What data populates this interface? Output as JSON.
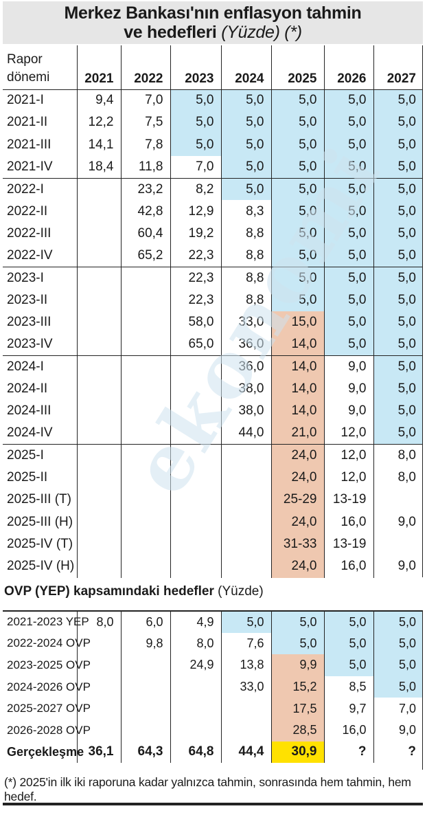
{
  "title": {
    "line1": "Merkez Bankası'nın enflasyon tahmin",
    "line2_bold": "ve hedefleri",
    "line2_italic": "(Yüzde) (*)"
  },
  "watermark": "ekonomi",
  "forecast_table": {
    "header_label_line1": "Rapor",
    "header_label_line2": "dönemi",
    "years": [
      "2021",
      "2022",
      "2023",
      "2024",
      "2025",
      "2026",
      "2027"
    ],
    "groups": [
      {
        "rows": [
          {
            "label": "2021-I",
            "cells": [
              "9,4",
              "7,0",
              "5,0",
              "5,0",
              "5,0",
              "5,0",
              "5,0"
            ],
            "shade": [
              "",
              "",
              "b",
              "b",
              "b",
              "b",
              "b"
            ]
          },
          {
            "label": "2021-II",
            "cells": [
              "12,2",
              "7,5",
              "5,0",
              "5,0",
              "5,0",
              "5,0",
              "5,0"
            ],
            "shade": [
              "",
              "",
              "b",
              "b",
              "b",
              "b",
              "b"
            ]
          },
          {
            "label": "2021-III",
            "cells": [
              "14,1",
              "7,8",
              "5,0",
              "5,0",
              "5,0",
              "5,0",
              "5,0"
            ],
            "shade": [
              "",
              "",
              "b",
              "b",
              "b",
              "b",
              "b"
            ]
          },
          {
            "label": "2021-IV",
            "cells": [
              "18,4",
              "11,8",
              "7,0",
              "5,0",
              "5,0",
              "5,0",
              "5,0"
            ],
            "shade": [
              "",
              "",
              "",
              "b",
              "b",
              "b",
              "b"
            ]
          }
        ]
      },
      {
        "rows": [
          {
            "label": "2022-I",
            "cells": [
              "",
              "23,2",
              "8,2",
              "5,0",
              "5,0",
              "5,0",
              "5,0"
            ],
            "shade": [
              "",
              "",
              "",
              "b",
              "b",
              "b",
              "b"
            ]
          },
          {
            "label": "2022-II",
            "cells": [
              "",
              "42,8",
              "12,9",
              "8,3",
              "5,0",
              "5,0",
              "5,0"
            ],
            "shade": [
              "",
              "",
              "",
              "",
              "b",
              "b",
              "b"
            ]
          },
          {
            "label": "2022-III",
            "cells": [
              "",
              "60,4",
              "19,2",
              "8,8",
              "5,0",
              "5,0",
              "5,0"
            ],
            "shade": [
              "",
              "",
              "",
              "",
              "b",
              "b",
              "b"
            ]
          },
          {
            "label": "2022-IV",
            "cells": [
              "",
              "65,2",
              "22,3",
              "8,8",
              "5,0",
              "5,0",
              "5,0"
            ],
            "shade": [
              "",
              "",
              "",
              "",
              "b",
              "b",
              "b"
            ]
          }
        ]
      },
      {
        "rows": [
          {
            "label": "2023-I",
            "cells": [
              "",
              "",
              "22,3",
              "8,8",
              "5,0",
              "5,0",
              "5,0"
            ],
            "shade": [
              "",
              "",
              "",
              "",
              "b",
              "b",
              "b"
            ]
          },
          {
            "label": "2023-II",
            "cells": [
              "",
              "",
              "22,3",
              "8,8",
              "5,0",
              "5,0",
              "5,0"
            ],
            "shade": [
              "",
              "",
              "",
              "",
              "b",
              "b",
              "b"
            ]
          },
          {
            "label": "2023-III",
            "cells": [
              "",
              "",
              "58,0",
              "33,0",
              "15,0",
              "5,0",
              "5,0"
            ],
            "shade": [
              "",
              "",
              "",
              "",
              "o",
              "b",
              "b"
            ]
          },
          {
            "label": "2023-IV",
            "cells": [
              "",
              "",
              "65,0",
              "36,0",
              "14,0",
              "5,0",
              "5,0"
            ],
            "shade": [
              "",
              "",
              "",
              "",
              "o",
              "b",
              "b"
            ]
          }
        ]
      },
      {
        "rows": [
          {
            "label": "2024-I",
            "cells": [
              "",
              "",
              "",
              "36,0",
              "14,0",
              "9,0",
              "5,0"
            ],
            "shade": [
              "",
              "",
              "",
              "",
              "o",
              "",
              "b"
            ]
          },
          {
            "label": "2024-II",
            "cells": [
              "",
              "",
              "",
              "38,0",
              "14,0",
              "9,0",
              "5,0"
            ],
            "shade": [
              "",
              "",
              "",
              "",
              "o",
              "",
              "b"
            ]
          },
          {
            "label": "2024-III",
            "cells": [
              "",
              "",
              "",
              "38,0",
              "14,0",
              "9,0",
              "5,0"
            ],
            "shade": [
              "",
              "",
              "",
              "",
              "o",
              "",
              "b"
            ]
          },
          {
            "label": "2024-IV",
            "cells": [
              "",
              "",
              "",
              "44,0",
              "21,0",
              "12,0",
              "5,0"
            ],
            "shade": [
              "",
              "",
              "",
              "",
              "o",
              "",
              "b"
            ]
          }
        ]
      },
      {
        "rows": [
          {
            "label": "2025-I",
            "cells": [
              "",
              "",
              "",
              "",
              "24,0",
              "12,0",
              "8,0"
            ],
            "shade": [
              "",
              "",
              "",
              "",
              "o",
              "",
              ""
            ]
          },
          {
            "label": "2025-II",
            "cells": [
              "",
              "",
              "",
              "",
              "24,0",
              "12,0",
              "8,0"
            ],
            "shade": [
              "",
              "",
              "",
              "",
              "o",
              "",
              ""
            ]
          },
          {
            "label": "2025-III (T)",
            "cells": [
              "",
              "",
              "",
              "",
              "25-29",
              "13-19",
              ""
            ],
            "shade": [
              "",
              "",
              "",
              "",
              "o",
              "",
              ""
            ]
          },
          {
            "label": "2025-III (H)",
            "cells": [
              "",
              "",
              "",
              "",
              "24,0",
              "16,0",
              "9,0"
            ],
            "shade": [
              "",
              "",
              "",
              "",
              "o",
              "",
              ""
            ]
          },
          {
            "label": "2025-IV (T)",
            "cells": [
              "",
              "",
              "",
              "",
              "31-33",
              "13-19",
              ""
            ],
            "shade": [
              "",
              "",
              "",
              "",
              "o",
              "",
              ""
            ]
          },
          {
            "label": "2025-IV (H)",
            "cells": [
              "",
              "",
              "",
              "",
              "24,0",
              "16,0",
              "9,0"
            ],
            "shade": [
              "",
              "",
              "",
              "",
              "o",
              "",
              ""
            ]
          }
        ]
      }
    ]
  },
  "ovp_section": {
    "title_bold": "OVP (YEP) kapsamındaki hedefler",
    "title_normal": "(Yüzde)",
    "rows": [
      {
        "label": "2021-2023 YEP",
        "cells": [
          "8,0",
          "6,0",
          "4,9",
          "5,0",
          "5,0",
          "5,0",
          "5,0"
        ],
        "shade": [
          "",
          "",
          "",
          "b",
          "b",
          "b",
          "b"
        ]
      },
      {
        "label": "2022-2024 OVP",
        "cells": [
          "",
          "9,8",
          "8,0",
          "7,6",
          "5,0",
          "5,0",
          "5,0"
        ],
        "shade": [
          "",
          "",
          "",
          "",
          "b",
          "b",
          "b"
        ]
      },
      {
        "label": "2023-2025 OVP",
        "cells": [
          "",
          "",
          "24,9",
          "13,8",
          "9,9",
          "5,0",
          "5,0"
        ],
        "shade": [
          "",
          "",
          "",
          "",
          "o",
          "b",
          "b"
        ]
      },
      {
        "label": "2024-2026 OVP",
        "cells": [
          "",
          "",
          "",
          "33,0",
          "15,2",
          "8,5",
          "5,0"
        ],
        "shade": [
          "",
          "",
          "",
          "",
          "o",
          "",
          "b"
        ]
      },
      {
        "label": "2025-2027 OVP",
        "cells": [
          "",
          "",
          "",
          "",
          "17,5",
          "9,7",
          "7,0"
        ],
        "shade": [
          "",
          "",
          "",
          "",
          "o",
          "",
          ""
        ]
      },
      {
        "label": "2026-2028 OVP",
        "cells": [
          "",
          "",
          "",
          "",
          "28,5",
          "16,0",
          "9,0"
        ],
        "shade": [
          "",
          "",
          "",
          "",
          "o",
          "",
          ""
        ]
      }
    ],
    "realized": {
      "label": "Gerçekleşme",
      "cells": [
        "36,1",
        "64,3",
        "64,8",
        "44,4",
        "30,9",
        "?",
        "?"
      ],
      "shade": [
        "",
        "",
        "",
        "",
        "y",
        "",
        ""
      ]
    }
  },
  "footnote": "(*) 2025'in ilk iki raporuna kadar yalnızca tahmin, sonrasında hem tahmin, hem hedef."
}
